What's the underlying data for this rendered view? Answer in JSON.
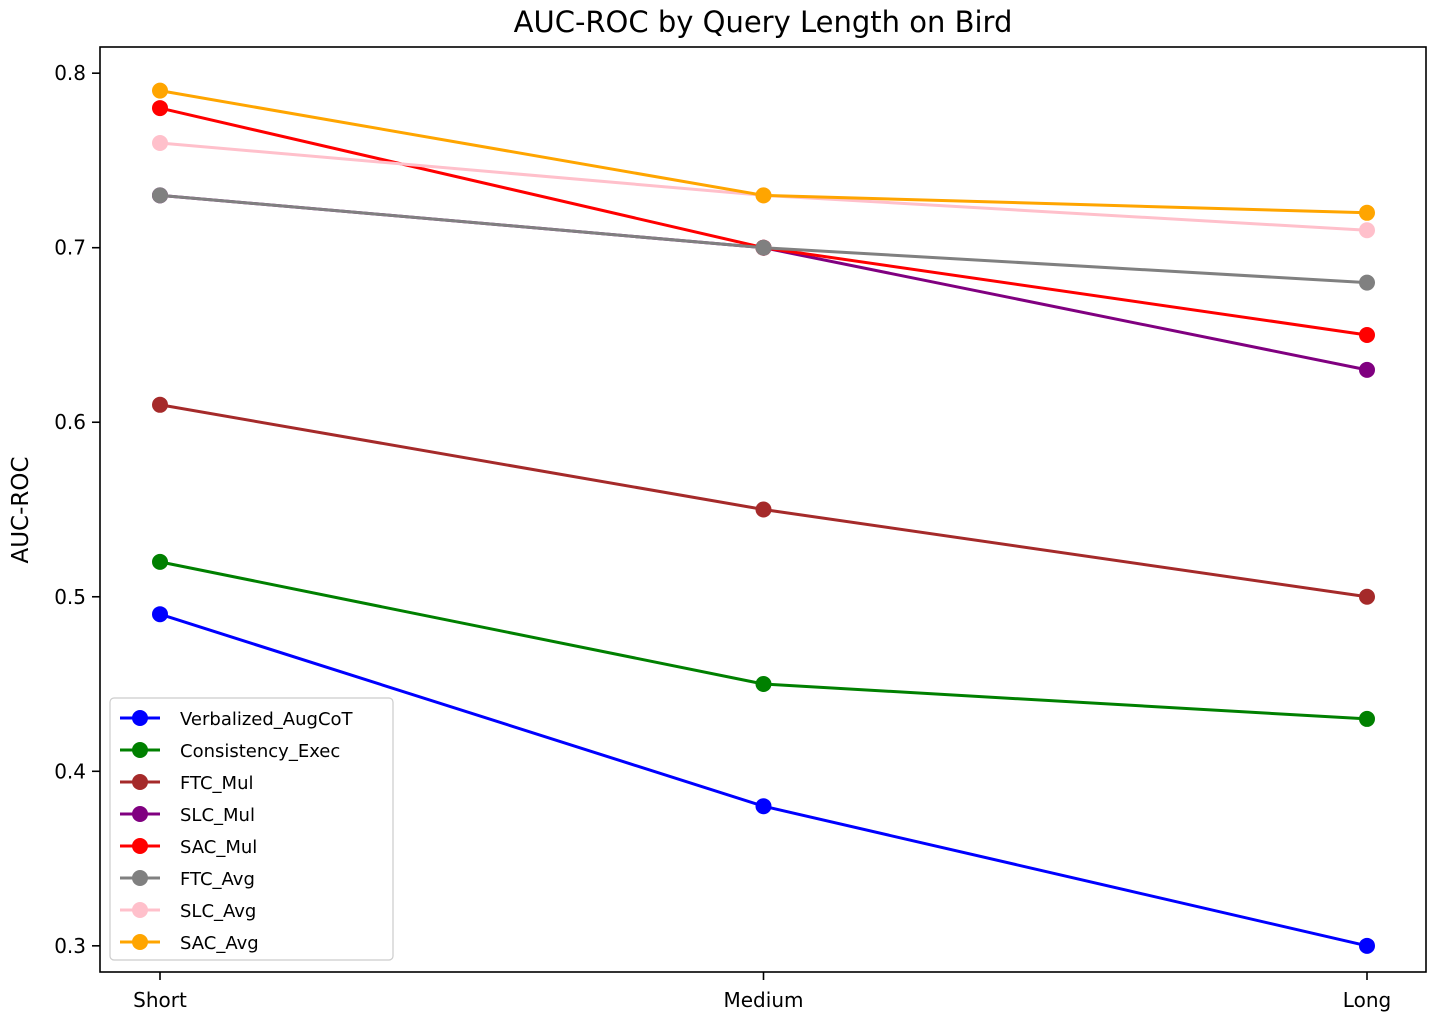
{
  "chart_data": {
    "type": "line",
    "title": "AUC-ROC by Query Length on Bird",
    "xlabel": "",
    "ylabel": "AUC-ROC",
    "categories": [
      "Short",
      "Medium",
      "Long"
    ],
    "ylim": [
      0.285,
      0.815
    ],
    "yticks": [
      0.3,
      0.4,
      0.5,
      0.6,
      0.7,
      0.8
    ],
    "ytick_labels": [
      "0.3",
      "0.4",
      "0.5",
      "0.6",
      "0.7",
      "0.8"
    ],
    "grid": false,
    "legend_position": "lower-left",
    "series": [
      {
        "name": "Verbalized_AugCoT",
        "color": "#0000ff",
        "values": [
          0.49,
          0.38,
          0.3
        ]
      },
      {
        "name": "Consistency_Exec",
        "color": "#008000",
        "values": [
          0.52,
          0.45,
          0.43
        ]
      },
      {
        "name": "FTC_Mul",
        "color": "#a52a2a",
        "values": [
          0.61,
          0.55,
          0.5
        ]
      },
      {
        "name": "SLC_Mul",
        "color": "#800080",
        "values": [
          0.73,
          0.7,
          0.63
        ]
      },
      {
        "name": "SAC_Mul",
        "color": "#ff0000",
        "values": [
          0.78,
          0.7,
          0.65
        ]
      },
      {
        "name": "FTC_Avg",
        "color": "#808080",
        "values": [
          0.73,
          0.7,
          0.68
        ]
      },
      {
        "name": "SLC_Avg",
        "color": "#ffc0cb",
        "values": [
          0.76,
          0.73,
          0.71
        ]
      },
      {
        "name": "SAC_Avg",
        "color": "#ffa500",
        "values": [
          0.79,
          0.73,
          0.72
        ]
      }
    ]
  }
}
